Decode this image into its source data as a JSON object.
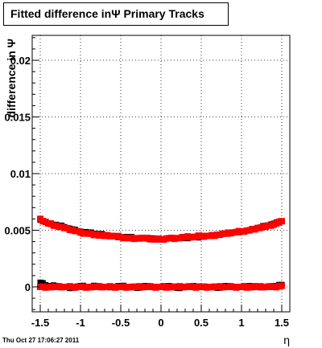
{
  "title": "Fitted difference inΨ   Primary Tracks",
  "footer": "Thu Oct 27 17:06:27 2011",
  "chart_data": {
    "type": "scatter",
    "title": "Fitted difference inΨ   Primary Tracks",
    "xlabel": "η",
    "ylabel": "difference in Ψ",
    "xlim": [
      -1.6,
      1.6
    ],
    "ylim": [
      -0.0022,
      0.0222
    ],
    "x_ticks": [
      -1.5,
      -1,
      -0.5,
      0,
      0.5,
      1,
      1.5
    ],
    "x_tick_labels": [
      "-1.5",
      "-1",
      "-0.5",
      "0",
      "0.5",
      "1",
      "1.5"
    ],
    "y_ticks": [
      0,
      0.005,
      0.01,
      0.015,
      0.02
    ],
    "y_tick_labels": [
      "0",
      "0.005",
      "0.01",
      "0.015",
      "0.02"
    ],
    "grid": true,
    "series": [
      {
        "color": "#000000",
        "marker": "square-small",
        "x": [
          -1.5,
          -1.4,
          -1.3,
          -1.2,
          -1.1,
          -1.0,
          -0.9,
          -0.8,
          -0.7,
          -0.6,
          -0.5,
          -0.4,
          -0.3,
          -0.2,
          -0.1,
          0.0,
          0.1,
          0.2,
          0.3,
          0.4,
          0.5,
          0.6,
          0.7,
          0.8,
          0.9,
          1.0,
          1.1,
          1.2,
          1.3,
          1.4,
          1.5
        ],
        "y": [
          0.0059,
          0.0056,
          0.0055,
          0.0053,
          0.0051,
          0.0049,
          0.0048,
          0.0047,
          0.0046,
          0.0045,
          0.0044,
          0.0044,
          0.0043,
          0.0043,
          0.0043,
          0.0042,
          0.0043,
          0.0043,
          0.0043,
          0.0044,
          0.0044,
          0.0045,
          0.0046,
          0.0047,
          0.0048,
          0.0049,
          0.005,
          0.0052,
          0.0054,
          0.0056,
          0.0058
        ]
      },
      {
        "color": "#ff0000",
        "marker": "square",
        "x": [
          -1.5,
          -1.4,
          -1.3,
          -1.2,
          -1.1,
          -1.0,
          -0.9,
          -0.8,
          -0.7,
          -0.6,
          -0.5,
          -0.4,
          -0.3,
          -0.2,
          -0.1,
          0.0,
          0.1,
          0.2,
          0.3,
          0.4,
          0.5,
          0.6,
          0.7,
          0.8,
          0.9,
          1.0,
          1.1,
          1.2,
          1.3,
          1.4,
          1.5
        ],
        "y": [
          0.006,
          0.0056,
          0.0054,
          0.0052,
          0.005,
          0.0048,
          0.0047,
          0.0046,
          0.0045,
          0.0045,
          0.0044,
          0.0043,
          0.0043,
          0.0043,
          0.0042,
          0.0042,
          0.0043,
          0.0043,
          0.0044,
          0.0044,
          0.0045,
          0.0045,
          0.0046,
          0.0047,
          0.0048,
          0.0049,
          0.005,
          0.0052,
          0.0053,
          0.0055,
          0.0058
        ]
      },
      {
        "color": "#000000",
        "marker": "square-small",
        "x": [
          -1.5,
          -1.4,
          -1.3,
          -1.2,
          -1.1,
          -1.0,
          -0.9,
          -0.8,
          -0.7,
          -0.6,
          -0.5,
          -0.4,
          -0.3,
          -0.2,
          -0.1,
          0.0,
          0.1,
          0.2,
          0.3,
          0.4,
          0.5,
          0.6,
          0.7,
          0.8,
          0.9,
          1.0,
          1.1,
          1.2,
          1.3,
          1.4,
          1.5
        ],
        "y": [
          0.0004,
          0.0001,
          0.0001,
          0.0,
          -0.0001,
          0.0001,
          0.0,
          0.0001,
          0.0,
          0.0,
          0.0001,
          0.0,
          -0.0001,
          0.0001,
          0.0,
          0.0,
          0.0001,
          -0.0001,
          0.0,
          0.0001,
          0.0,
          0.0,
          -0.0001,
          0.0001,
          0.0,
          0.0,
          0.0001,
          0.0,
          0.0,
          0.0001,
          0.0002
        ]
      },
      {
        "color": "#ff0000",
        "marker": "square",
        "x": [
          -1.5,
          -1.4,
          -1.3,
          -1.2,
          -1.1,
          -1.0,
          -0.9,
          -0.8,
          -0.7,
          -0.6,
          -0.5,
          -0.4,
          -0.3,
          -0.2,
          -0.1,
          0.0,
          0.1,
          0.2,
          0.3,
          0.4,
          0.5,
          0.6,
          0.7,
          0.8,
          0.9,
          1.0,
          1.1,
          1.2,
          1.3,
          1.4,
          1.5
        ],
        "y": [
          0.0,
          0.0,
          0.0,
          0.0,
          0.0,
          0.0,
          0.0,
          0.0,
          0.0,
          0.0,
          0.0,
          0.0,
          0.0,
          0.0,
          0.0,
          0.0,
          0.0,
          0.0,
          0.0,
          0.0,
          0.0,
          0.0,
          0.0,
          0.0,
          0.0,
          0.0,
          0.0,
          0.0,
          0.0,
          0.0,
          0.0001
        ]
      }
    ]
  }
}
